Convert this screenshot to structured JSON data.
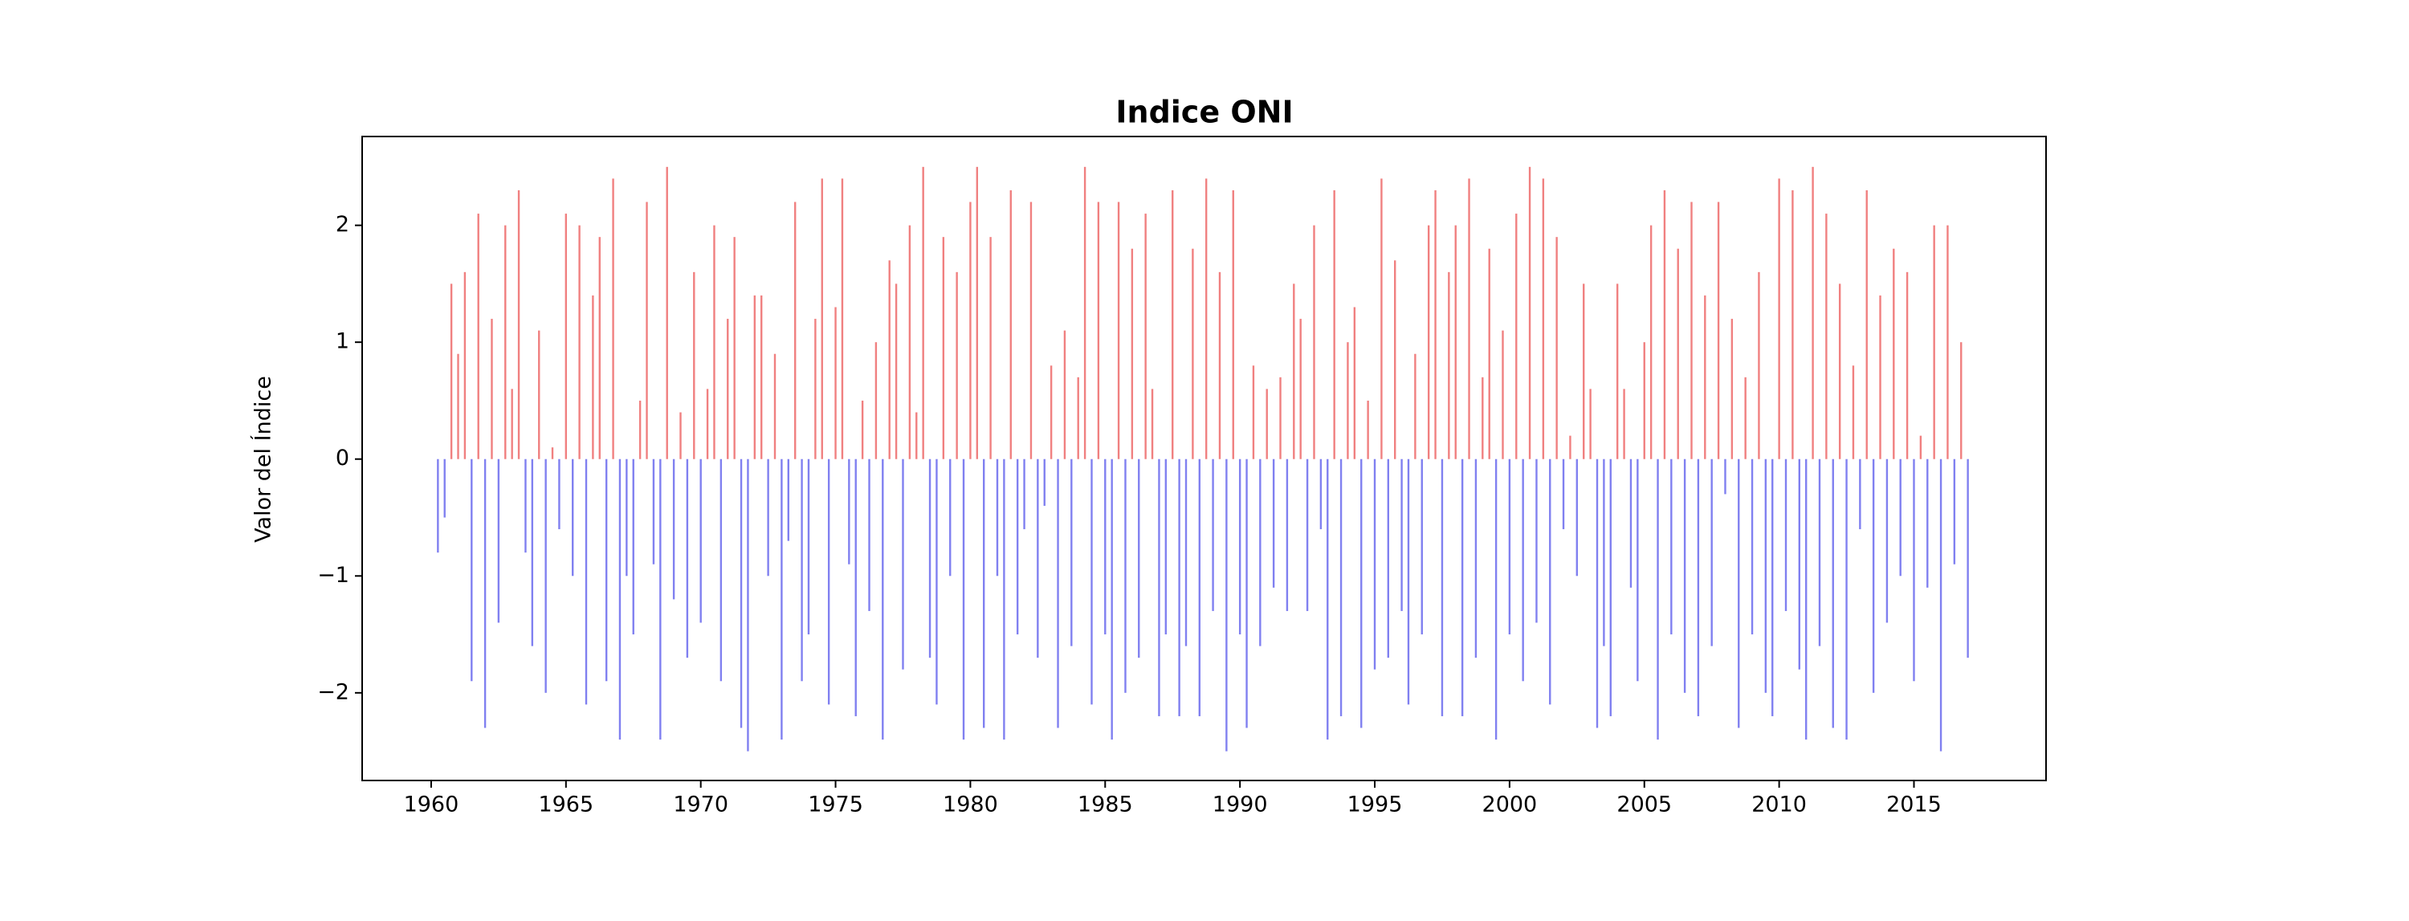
{
  "chart_data": {
    "type": "bar",
    "title": "Indice ONI",
    "ylabel": "Valor del Índice",
    "positive_color": "#f08080",
    "negative_color": "#8080f0",
    "xlim": [
      1957.44,
      2019.9
    ],
    "ylim": [
      -2.75,
      2.76
    ],
    "xticks": [
      1960,
      1965,
      1970,
      1975,
      1980,
      1985,
      1990,
      1995,
      2000,
      2005,
      2010,
      2015
    ],
    "yticks": [
      {
        "value": -2,
        "label": "−2"
      },
      {
        "value": -1,
        "label": "−1"
      },
      0,
      1,
      2
    ],
    "x": [
      1960.25,
      1960.5,
      1960.75,
      1961,
      1961.25,
      1961.5,
      1961.75,
      1962,
      1962.25,
      1962.5,
      1962.75,
      1963,
      1963.25,
      1963.5,
      1963.75,
      1964,
      1964.25,
      1964.5,
      1964.75,
      1965,
      1965.25,
      1965.5,
      1965.75,
      1966,
      1966.25,
      1966.5,
      1966.75,
      1967,
      1967.25,
      1967.5,
      1967.75,
      1968,
      1968.25,
      1968.5,
      1968.75,
      1969,
      1969.25,
      1969.5,
      1969.75,
      1970,
      1970.25,
      1970.5,
      1970.75,
      1971,
      1971.25,
      1971.5,
      1971.75,
      1972,
      1972.25,
      1972.5,
      1972.75,
      1973,
      1973.25,
      1973.5,
      1973.75,
      1974,
      1974.25,
      1974.5,
      1974.75,
      1975,
      1975.25,
      1975.5,
      1975.75,
      1976,
      1976.25,
      1976.5,
      1976.75,
      1977,
      1977.25,
      1977.5,
      1977.75,
      1978,
      1978.25,
      1978.5,
      1978.75,
      1979,
      1979.25,
      1979.5,
      1979.75,
      1980,
      1980.25,
      1980.5,
      1980.75,
      1981,
      1981.25,
      1981.5,
      1981.75,
      1982,
      1982.25,
      1982.5,
      1982.75,
      1983,
      1983.25,
      1983.5,
      1983.75,
      1984,
      1984.25,
      1984.5,
      1984.75,
      1985,
      1985.25,
      1985.5,
      1985.75,
      1986,
      1986.25,
      1986.5,
      1986.75,
      1987,
      1987.25,
      1987.5,
      1987.75,
      1988,
      1988.25,
      1988.5,
      1988.75,
      1989,
      1989.25,
      1989.5,
      1989.75,
      1990,
      1990.25,
      1990.5,
      1990.75,
      1991,
      1991.25,
      1991.5,
      1991.75,
      1992,
      1992.25,
      1992.5,
      1992.75,
      1993,
      1993.25,
      1993.5,
      1993.75,
      1994,
      1994.25,
      1994.5,
      1994.75,
      1995,
      1995.25,
      1995.5,
      1995.75,
      1996,
      1996.25,
      1996.5,
      1996.75,
      1997,
      1997.25,
      1997.5,
      1997.75,
      1998,
      1998.25,
      1998.5,
      1998.75,
      1999,
      1999.25,
      1999.5,
      1999.75,
      2000,
      2000.25,
      2000.5,
      2000.75,
      2001,
      2001.25,
      2001.5,
      2001.75,
      2002,
      2002.25,
      2002.5,
      2002.75,
      2003,
      2003.25,
      2003.5,
      2003.75,
      2004,
      2004.25,
      2004.5,
      2004.75,
      2005,
      2005.25,
      2005.5,
      2005.75,
      2006,
      2006.25,
      2006.5,
      2006.75,
      2007,
      2007.25,
      2007.5,
      2007.75,
      2008,
      2008.25,
      2008.5,
      2008.75,
      2009,
      2009.25,
      2009.5,
      2009.75,
      2010,
      2010.25,
      2010.5,
      2010.75,
      2011,
      2011.25,
      2011.5,
      2011.75,
      2012,
      2012.25,
      2012.5,
      2012.75,
      2013,
      2013.25,
      2013.5,
      2013.75,
      2014,
      2014.25,
      2014.5,
      2014.75,
      2015,
      2015.25,
      2015.5,
      2015.75,
      2016,
      2016.25,
      2016.5,
      2016.75,
      2017
    ],
    "values": [
      -0.8,
      -0.5,
      1.5,
      0.9,
      1.6,
      -1.9,
      2.1,
      -2.3,
      1.2,
      -1.4,
      2.0,
      0.6,
      2.3,
      -0.8,
      -1.6,
      1.1,
      -2.0,
      0.1,
      -0.6,
      2.1,
      -1.0,
      2.0,
      -2.1,
      1.4,
      1.9,
      -1.9,
      2.4,
      -2.4,
      -1.0,
      -1.5,
      0.5,
      2.2,
      -0.9,
      -2.4,
      2.5,
      -1.2,
      0.4,
      -1.7,
      1.6,
      -1.4,
      0.6,
      2.0,
      -1.9,
      1.2,
      1.9,
      -2.3,
      -2.5,
      1.4,
      1.4,
      -1.0,
      0.9,
      -2.4,
      -0.7,
      2.2,
      -1.9,
      -1.5,
      1.2,
      2.4,
      -2.1,
      1.3,
      2.4,
      -0.9,
      -2.2,
      0.5,
      -1.3,
      1.0,
      -2.4,
      1.7,
      1.5,
      -1.8,
      2.0,
      0.4,
      2.5,
      -1.7,
      -2.1,
      1.9,
      -1.0,
      1.6,
      -2.4,
      2.2,
      2.5,
      -2.3,
      1.9,
      -1.0,
      -2.4,
      2.3,
      -1.5,
      -0.6,
      2.2,
      -1.7,
      -0.4,
      0.8,
      -2.3,
      1.1,
      -1.6,
      0.7,
      2.5,
      -2.1,
      2.2,
      -1.5,
      -2.4,
      2.2,
      -2.0,
      1.8,
      -1.7,
      2.1,
      0.6,
      -2.2,
      -1.5,
      2.3,
      -2.2,
      -1.6,
      1.8,
      -2.2,
      2.4,
      -1.3,
      1.6,
      -2.5,
      2.3,
      -1.5,
      -2.3,
      0.8,
      -1.6,
      0.6,
      -1.1,
      0.7,
      -1.3,
      1.5,
      1.2,
      -1.3,
      2.0,
      -0.6,
      -2.4,
      2.3,
      -2.2,
      1.0,
      1.3,
      -2.3,
      0.5,
      -1.8,
      2.4,
      -1.7,
      1.7,
      -1.3,
      -2.1,
      0.9,
      -1.5,
      2.0,
      2.3,
      -2.2,
      1.6,
      2.0,
      -2.2,
      2.4,
      -1.7,
      0.7,
      1.8,
      -2.4,
      1.1,
      -1.5,
      2.1,
      -1.9,
      2.5,
      -1.4,
      2.4,
      -2.1,
      1.9,
      -0.6,
      0.2,
      -1.0,
      1.5,
      0.6,
      -2.3,
      -1.6,
      -2.2,
      1.5,
      0.6,
      -1.1,
      -1.9,
      1.0,
      2.0,
      -2.4,
      2.3,
      -1.5,
      1.8,
      -2.0,
      2.2,
      -2.2,
      1.4,
      -1.6,
      2.2,
      -0.3,
      1.2,
      -2.3,
      0.7,
      -1.5,
      1.6,
      -2.0,
      -2.2,
      2.4,
      -1.3,
      2.3,
      -1.8,
      -2.4,
      2.5,
      -1.6,
      2.1,
      -2.3,
      1.5,
      -2.4,
      0.8,
      -0.6,
      2.3,
      -2.0,
      1.4,
      -1.4,
      1.8,
      -1.0,
      1.6,
      -1.9,
      0.2,
      -1.1,
      2.0,
      -2.5,
      2.0,
      -0.9,
      1.0,
      -1.7
    ]
  }
}
